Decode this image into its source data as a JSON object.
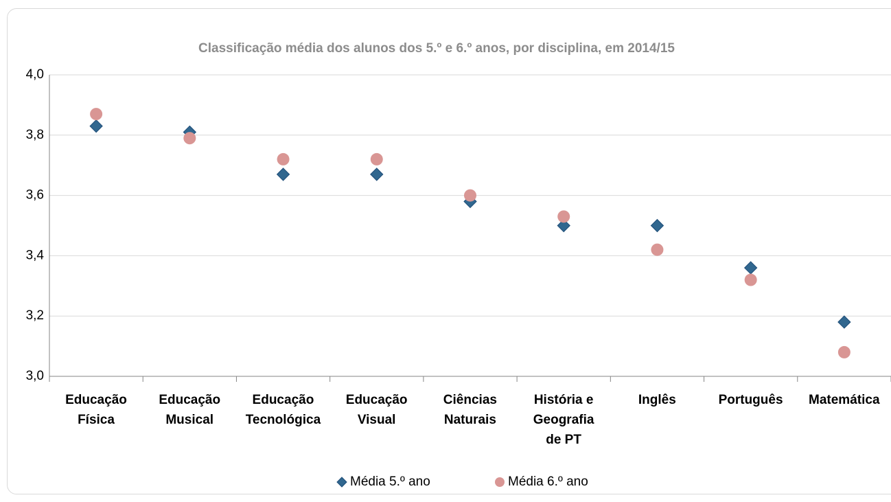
{
  "chart_data": {
    "type": "scatter",
    "title": "Classificação média dos alunos dos 5.º e 6.º anos, por disciplina, em 2014/15",
    "categories": [
      "Educação\nFísica",
      "Educação\nMusical",
      "Educação\nTecnológica",
      "Educação\nVisual",
      "Ciências\nNaturais",
      "História e\nGeografia\nde PT",
      "Inglês",
      "Português",
      "Matemática"
    ],
    "series": [
      {
        "name": "Média 5.º ano",
        "color": "#31678f",
        "marker": "diamond",
        "values": [
          3.83,
          3.81,
          3.67,
          3.67,
          3.58,
          3.5,
          3.5,
          3.36,
          3.18
        ]
      },
      {
        "name": "Média 6.º ano",
        "color": "#d99694",
        "marker": "circle",
        "values": [
          3.87,
          3.79,
          3.72,
          3.72,
          3.6,
          3.53,
          3.42,
          3.32,
          3.08
        ]
      }
    ],
    "ylim": [
      3.0,
      4.0
    ],
    "yticks": [
      {
        "value": 3.0,
        "label": "3,0"
      },
      {
        "value": 3.2,
        "label": "3,2"
      },
      {
        "value": 3.4,
        "label": "3,4"
      },
      {
        "value": 3.6,
        "label": "3,6"
      },
      {
        "value": 3.8,
        "label": "3,8"
      },
      {
        "value": 4.0,
        "label": "4,0"
      }
    ],
    "grid": true,
    "legend": "bottom"
  }
}
